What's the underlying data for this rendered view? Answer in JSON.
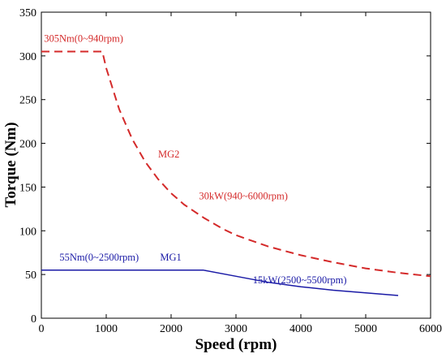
{
  "chart_data": {
    "type": "line",
    "title": "",
    "xlabel": "Speed (rpm)",
    "ylabel": "Torque (Nm)",
    "xlim": [
      0,
      6000
    ],
    "ylim": [
      0,
      350
    ],
    "xticks": [
      0,
      1000,
      2000,
      3000,
      4000,
      5000,
      6000
    ],
    "yticks": [
      0,
      50,
      100,
      150,
      200,
      250,
      300,
      350
    ],
    "grid": false,
    "legend": "none",
    "series": [
      {
        "name": "MG2",
        "color": "#d42a2a",
        "style": "dashed",
        "x": [
          0,
          940,
          1000,
          1200,
          1400,
          1600,
          1800,
          2000,
          2200,
          2500,
          2800,
          3000,
          3500,
          4000,
          4500,
          5000,
          5500,
          6000
        ],
        "y": [
          305,
          305,
          286,
          239,
          205,
          179,
          159,
          143,
          130,
          115,
          102,
          95,
          82,
          72,
          64,
          57,
          52,
          48
        ]
      },
      {
        "name": "MG1",
        "color": "#1a1aa6",
        "style": "solid",
        "x": [
          0,
          2500,
          3000,
          3500,
          4000,
          4500,
          5000,
          5500
        ],
        "y": [
          55,
          55,
          48,
          41,
          36,
          32,
          29,
          26
        ]
      }
    ],
    "annotations": [
      {
        "text": "305Nm(0~940rpm)",
        "x": 40,
        "y": 316,
        "color": "#d42a2a"
      },
      {
        "text": "MG2",
        "x": 1800,
        "y": 184,
        "color": "#d42a2a"
      },
      {
        "text": "30kW(940~6000rpm)",
        "x": 2430,
        "y": 136,
        "color": "#d42a2a"
      },
      {
        "text": "55Nm(0~2500rpm)",
        "x": 280,
        "y": 66,
        "color": "#1a1aa6"
      },
      {
        "text": "MG1",
        "x": 1830,
        "y": 66,
        "color": "#1a1aa6"
      },
      {
        "text": "15kW(2500~5500rpm)",
        "x": 3260,
        "y": 40,
        "color": "#1a1aa6"
      }
    ]
  }
}
